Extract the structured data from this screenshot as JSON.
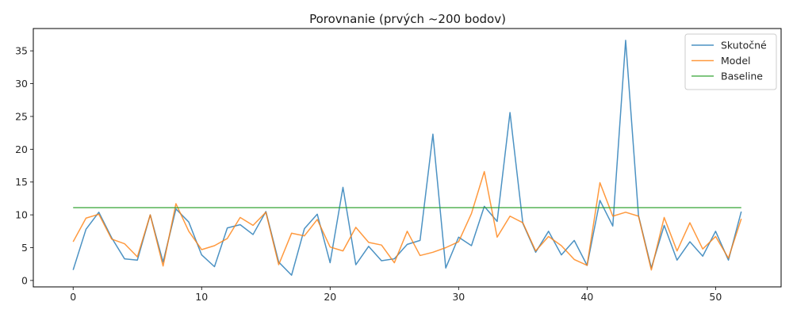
{
  "chart_data": {
    "type": "line",
    "title": "Porovnanie (prvých ~200 bodov)",
    "xlabel": "",
    "ylabel": "",
    "xlim": [
      -3.1,
      55.1
    ],
    "ylim": [
      -0.98,
      38.4
    ],
    "xticks": [
      0,
      10,
      20,
      30,
      40,
      50
    ],
    "yticks": [
      0,
      5,
      10,
      15,
      20,
      25,
      30,
      35
    ],
    "grid": false,
    "legend_position": "top-right",
    "series": [
      {
        "name": "Skutočné",
        "color": "#1f77b4",
        "x": [
          0,
          1,
          2,
          3,
          4,
          5,
          6,
          7,
          8,
          9,
          10,
          11,
          12,
          13,
          14,
          15,
          16,
          17,
          18,
          19,
          20,
          21,
          22,
          23,
          24,
          25,
          26,
          27,
          28,
          29,
          30,
          31,
          32,
          33,
          34,
          35,
          36,
          37,
          38,
          39,
          40,
          41,
          42,
          43,
          44,
          45,
          46,
          47,
          48,
          49,
          50,
          51,
          52
        ],
        "values": [
          1.6,
          7.8,
          10.4,
          6.5,
          3.3,
          3.1,
          10.0,
          2.8,
          10.9,
          8.9,
          3.9,
          2.1,
          8.0,
          8.5,
          7.0,
          10.5,
          2.8,
          0.8,
          7.9,
          10.1,
          2.7,
          14.2,
          2.4,
          5.2,
          3.0,
          3.3,
          5.5,
          6.1,
          22.3,
          1.9,
          6.6,
          5.3,
          11.3,
          9.0,
          25.6,
          8.7,
          4.3,
          7.5,
          3.9,
          6.1,
          2.3,
          12.2,
          8.3,
          36.6,
          9.9,
          1.9,
          8.4,
          3.1,
          5.9,
          3.7,
          7.5,
          3.1,
          10.5
        ]
      },
      {
        "name": "Model",
        "color": "#ff7f0e",
        "x": [
          0,
          1,
          2,
          3,
          4,
          5,
          6,
          7,
          8,
          9,
          10,
          11,
          12,
          13,
          14,
          15,
          16,
          17,
          18,
          19,
          20,
          21,
          22,
          23,
          24,
          25,
          26,
          27,
          28,
          29,
          30,
          31,
          32,
          33,
          34,
          35,
          36,
          37,
          38,
          39,
          40,
          41,
          42,
          43,
          44,
          45,
          46,
          47,
          48,
          49,
          50,
          51,
          52
        ],
        "values": [
          5.9,
          9.5,
          10.1,
          6.3,
          5.6,
          3.6,
          10.0,
          2.2,
          11.7,
          7.5,
          4.7,
          5.3,
          6.4,
          9.6,
          8.4,
          10.4,
          2.4,
          7.2,
          6.8,
          9.3,
          5.1,
          4.5,
          8.1,
          5.8,
          5.4,
          2.7,
          7.5,
          3.8,
          4.3,
          5.0,
          5.9,
          10.2,
          16.6,
          6.6,
          9.8,
          8.8,
          4.5,
          6.7,
          5.3,
          3.2,
          2.3,
          14.9,
          9.8,
          10.4,
          9.8,
          1.6,
          9.6,
          4.5,
          8.8,
          4.8,
          6.7,
          3.4,
          9.4
        ]
      },
      {
        "name": "Baseline",
        "color": "#2ca02c",
        "x": [
          0,
          52
        ],
        "values": [
          11.1,
          11.1
        ]
      }
    ]
  }
}
